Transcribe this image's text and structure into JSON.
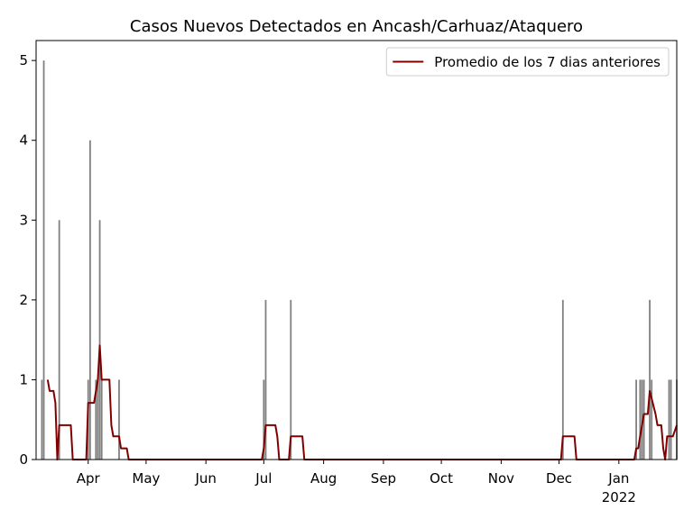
{
  "chart_data": {
    "type": "combo",
    "title": "Casos Nuevos Detectados en Ancash/Carhuaz/Ataquero",
    "xlim": [
      "2021-03-05",
      "2022-01-31"
    ],
    "ylim": [
      0,
      5.25
    ],
    "yticks": [
      0,
      1,
      2,
      3,
      4,
      5
    ],
    "xticks": [
      {
        "value": "2021-04-01",
        "label": "Apr"
      },
      {
        "value": "2021-05-01",
        "label": "May"
      },
      {
        "value": "2021-06-01",
        "label": "Jun"
      },
      {
        "value": "2021-07-01",
        "label": "Jul"
      },
      {
        "value": "2021-08-01",
        "label": "Aug"
      },
      {
        "value": "2021-09-01",
        "label": "Sep"
      },
      {
        "value": "2021-10-01",
        "label": "Oct"
      },
      {
        "value": "2021-11-01",
        "label": "Nov"
      },
      {
        "value": "2021-12-01",
        "label": "Dec"
      },
      {
        "value": "2022-01-01",
        "label": "Jan"
      }
    ],
    "x_offset_label": "2022",
    "legend_position": "upper right",
    "bars": {
      "color": "#808080",
      "x": [
        "2021-03-08",
        "2021-03-09",
        "2021-03-17",
        "2021-04-01",
        "2021-04-02",
        "2021-04-05",
        "2021-04-06",
        "2021-04-07",
        "2021-04-08",
        "2021-04-17",
        "2021-07-01",
        "2021-07-02",
        "2021-07-15",
        "2021-12-03",
        "2022-01-10",
        "2022-01-12",
        "2022-01-13",
        "2022-01-14",
        "2022-01-17",
        "2022-01-18",
        "2022-01-27",
        "2022-01-28",
        "2022-01-31"
      ],
      "values": [
        1,
        5,
        3,
        1,
        4,
        1,
        1,
        3,
        1,
        1,
        1,
        2,
        2,
        2,
        1,
        1,
        1,
        1,
        2,
        1,
        1,
        1,
        1
      ]
    },
    "series": [
      {
        "name": "Promedio de los 7 dias anteriores",
        "color": "#800000",
        "x": [
          "2021-03-11",
          "2021-03-12",
          "2021-03-14",
          "2021-03-15",
          "2021-03-16",
          "2021-03-17",
          "2021-03-23",
          "2021-03-24",
          "2021-03-31",
          "2021-04-01",
          "2021-04-04",
          "2021-04-06",
          "2021-04-07",
          "2021-04-08",
          "2021-04-12",
          "2021-04-13",
          "2021-04-14",
          "2021-04-17",
          "2021-04-18",
          "2021-04-21",
          "2021-04-22",
          "2021-06-30",
          "2021-07-01",
          "2021-07-02",
          "2021-07-07",
          "2021-07-08",
          "2021-07-09",
          "2021-07-14",
          "2021-07-15",
          "2021-07-21",
          "2021-07-22",
          "2021-12-02",
          "2021-12-03",
          "2021-12-09",
          "2021-12-10",
          "2022-01-09",
          "2022-01-10",
          "2022-01-11",
          "2022-01-12",
          "2022-01-14",
          "2022-01-16",
          "2022-01-17",
          "2022-01-20",
          "2022-01-21",
          "2022-01-23",
          "2022-01-24",
          "2022-01-25",
          "2022-01-26",
          "2022-01-29",
          "2022-01-31"
        ],
        "values": [
          1,
          0.86,
          0.86,
          0.71,
          0,
          0.43,
          0.43,
          0,
          0,
          0.71,
          0.71,
          1,
          1.43,
          1,
          1,
          0.43,
          0.29,
          0.29,
          0.14,
          0.14,
          0,
          0,
          0.14,
          0.43,
          0.43,
          0.29,
          0,
          0,
          0.29,
          0.29,
          0,
          0,
          0.29,
          0.29,
          0,
          0,
          0.14,
          0.14,
          0.29,
          0.57,
          0.57,
          0.86,
          0.57,
          0.43,
          0.43,
          0.14,
          0,
          0.29,
          0.29,
          0.43
        ]
      }
    ]
  }
}
